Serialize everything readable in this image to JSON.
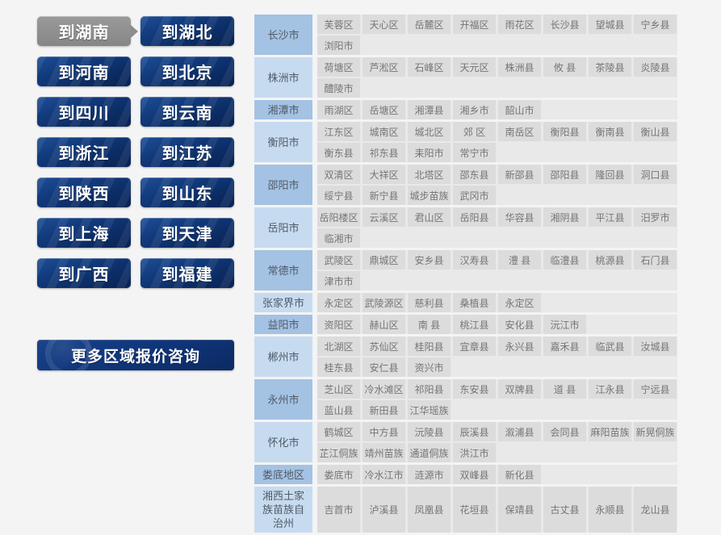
{
  "sidebar": {
    "buttons": [
      {
        "label": "到湖南",
        "active": true
      },
      {
        "label": "到湖北",
        "active": false
      },
      {
        "label": "到河南",
        "active": false
      },
      {
        "label": "到北京",
        "active": false
      },
      {
        "label": "到四川",
        "active": false
      },
      {
        "label": "到云南",
        "active": false
      },
      {
        "label": "到浙江",
        "active": false
      },
      {
        "label": "到江苏",
        "active": false
      },
      {
        "label": "到陕西",
        "active": false
      },
      {
        "label": "到山东",
        "active": false
      },
      {
        "label": "到上海",
        "active": false
      },
      {
        "label": "到天津",
        "active": false
      },
      {
        "label": "到广西",
        "active": false
      },
      {
        "label": "到福建",
        "active": false
      }
    ],
    "more_button": "更多区域报价咨询"
  },
  "table": {
    "rows": [
      {
        "city": "长沙市",
        "districts": [
          "芙蓉区",
          "天心区",
          "岳麓区",
          "开福区",
          "雨花区",
          "长沙县",
          "望城县",
          "宁乡县",
          "浏阳市"
        ]
      },
      {
        "city": "株洲市",
        "districts": [
          "荷塘区",
          "芦淞区",
          "石峰区",
          "天元区",
          "株洲县",
          "攸 县",
          "茶陵县",
          "炎陵县",
          "醴陵市"
        ]
      },
      {
        "city": "湘潭市",
        "districts": [
          "雨湖区",
          "岳塘区",
          "湘潭县",
          "湘乡市",
          "韶山市"
        ]
      },
      {
        "city": "衡阳市",
        "districts": [
          "江东区",
          "城南区",
          "城北区",
          "郊 区",
          "南岳区",
          "衡阳县",
          "衡南县",
          "衡山县",
          "衡东县",
          "祁东县",
          "耒阳市",
          "常宁市"
        ]
      },
      {
        "city": "邵阳市",
        "districts": [
          "双清区",
          "大祥区",
          "北塔区",
          "邵东县",
          "新邵县",
          "邵阳县",
          "隆回县",
          "洞口县",
          "绥宁县",
          "新宁县",
          "城步苗族",
          "武冈市"
        ]
      },
      {
        "city": "岳阳市",
        "districts": [
          "岳阳楼区",
          "云溪区",
          "君山区",
          "岳阳县",
          "华容县",
          "湘阴县",
          "平江县",
          "汨罗市",
          "临湘市"
        ]
      },
      {
        "city": "常德市",
        "districts": [
          "武陵区",
          "鼎城区",
          "安乡县",
          "汉寿县",
          "澧 县",
          "临澧县",
          "桃源县",
          "石门县",
          "津市市"
        ]
      },
      {
        "city": "张家界市",
        "districts": [
          "永定区",
          "武陵源区",
          "慈利县",
          "桑植县",
          "永定区"
        ]
      },
      {
        "city": "益阳市",
        "districts": [
          "资阳区",
          "赫山区",
          "南 县",
          "桃江县",
          "安化县",
          "沅江市"
        ]
      },
      {
        "city": "郴州市",
        "districts": [
          "北湖区",
          "苏仙区",
          "桂阳县",
          "宜章县",
          "永兴县",
          "嘉禾县",
          "临武县",
          "汝城县",
          "桂东县",
          "安仁县",
          "资兴市"
        ]
      },
      {
        "city": "永州市",
        "districts": [
          "芝山区",
          "冷水滩区",
          "祁阳县",
          "东安县",
          "双牌县",
          "道 县",
          "江永县",
          "宁远县",
          "蓝山县",
          "新田县",
          "江华瑶族"
        ]
      },
      {
        "city": "怀化市",
        "districts": [
          "鹤城区",
          "中方县",
          "沅陵县",
          "辰溪县",
          "溆浦县",
          "会同县",
          "麻阳苗族",
          "新晃侗族",
          "芷江侗族",
          "靖州苗族",
          "通道侗族",
          "洪江市"
        ]
      },
      {
        "city": "娄底地区",
        "districts": [
          "娄底市",
          "冷水江市",
          "涟源市",
          "双峰县",
          "新化县"
        ]
      },
      {
        "city": "湘西土家族苗族自治州",
        "districts": [
          "吉首市",
          "泸溪县",
          "凤凰县",
          "花垣县",
          "保靖县",
          "古丈县",
          "永顺县",
          "龙山县"
        ]
      }
    ]
  },
  "colors": {
    "page_bg": "#f4f4f4",
    "button_blue": "#0d3170",
    "active_button_gray": "#8f8f8f",
    "city_cell_dark": "#a4c2e3",
    "city_cell_light": "#c7dbf0",
    "district_cell_bg": "#dcdcdc",
    "row_bg": "#e9e9e9",
    "district_text": "#757575"
  }
}
